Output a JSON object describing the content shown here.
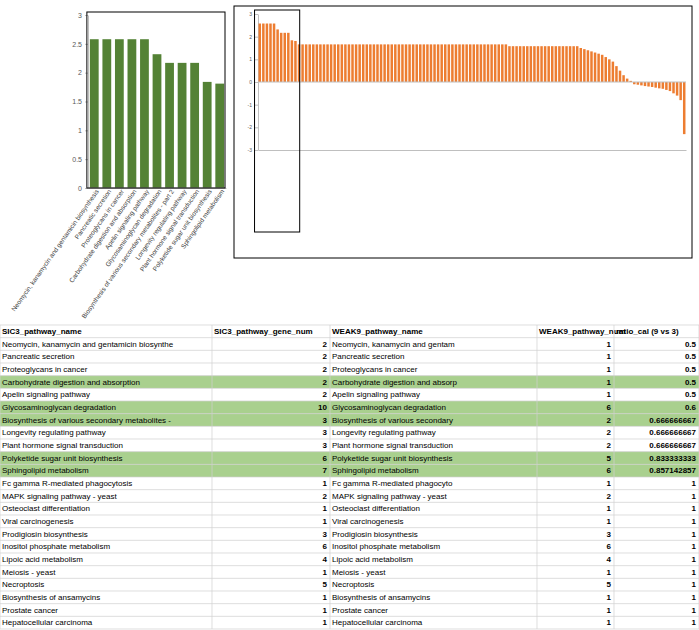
{
  "chart_data": [
    {
      "type": "bar",
      "categories": [
        "Neomycin, kanamycin and gentamicin biosynthesis",
        "Pancreatic secretion",
        "Proteoglycans in cancer",
        "Carbohydrate digestion and absorption",
        "Apelin signaling pathway",
        "Glycosaminoglycan degradation",
        "Biosynthesis of various secondary metabolites - part 2",
        "Longevity regulating pathway",
        "Plant hormone signal transduction",
        "Polyketide sugar unit biosynthesis",
        "Sphingolipid metabolism"
      ],
      "values": [
        2.58,
        2.58,
        2.58,
        2.58,
        2.58,
        2.32,
        2.17,
        2.17,
        2.17,
        1.84,
        1.81
      ],
      "color": "#548235",
      "ylim": [
        0,
        3
      ],
      "yticks": [
        0,
        0.5,
        1,
        1.5,
        2,
        2.5,
        3
      ]
    },
    {
      "type": "bar",
      "categories": [
        null,
        null,
        null,
        null,
        null,
        null,
        null,
        null,
        null,
        null,
        null,
        null,
        null,
        null,
        null,
        null,
        null,
        null,
        null,
        null,
        null,
        null,
        null,
        null,
        null,
        null,
        null,
        null,
        null,
        null,
        null,
        null,
        null,
        null,
        null,
        null,
        null,
        null,
        null,
        null,
        null,
        null,
        null,
        null,
        null,
        null,
        null,
        null,
        null,
        null,
        null,
        null,
        null,
        null,
        null,
        null,
        null,
        null,
        null,
        null,
        null,
        null,
        null,
        null,
        null,
        null,
        null,
        null,
        null,
        null,
        null,
        null,
        null,
        null,
        null,
        null,
        null,
        null,
        null,
        null,
        null,
        null,
        null,
        null,
        null,
        null,
        null,
        null,
        null,
        null,
        null,
        null,
        null,
        null,
        null,
        null,
        null,
        null,
        null,
        null,
        null,
        null,
        null,
        null,
        null,
        null,
        null,
        null,
        null,
        null,
        null,
        null,
        null,
        null,
        null,
        null,
        null,
        null,
        null,
        null
      ],
      "values": [
        2.58,
        2.58,
        2.58,
        2.58,
        2.58,
        2.32,
        2.17,
        2.17,
        2.17,
        1.84,
        1.81,
        1.66,
        1.66,
        1.66,
        1.66,
        1.66,
        1.66,
        1.66,
        1.66,
        1.66,
        1.66,
        1.66,
        1.66,
        1.66,
        1.66,
        1.66,
        1.66,
        1.66,
        1.66,
        1.66,
        1.66,
        1.66,
        1.66,
        1.66,
        1.66,
        1.66,
        1.66,
        1.66,
        1.66,
        1.66,
        1.66,
        1.66,
        1.66,
        1.66,
        1.66,
        1.66,
        1.66,
        1.66,
        1.66,
        1.66,
        1.66,
        1.66,
        1.66,
        1.66,
        1.66,
        1.66,
        1.66,
        1.66,
        1.66,
        1.66,
        1.66,
        1.66,
        1.66,
        1.66,
        1.66,
        1.66,
        1.66,
        1.66,
        1.66,
        1.66,
        1.58,
        1.58,
        1.58,
        1.58,
        1.58,
        1.58,
        1.58,
        1.58,
        1.58,
        1.58,
        1.58,
        1.58,
        1.58,
        1.58,
        1.58,
        1.58,
        1.58,
        1.58,
        1.58,
        1.58,
        1.5,
        1.45,
        1.4,
        1.35,
        1.3,
        1.25,
        1.2,
        1.1,
        1.0,
        0.9,
        0.7,
        0.5,
        0.3,
        0.15,
        0.05,
        -0.1,
        -0.12,
        -0.15,
        -0.18,
        -0.2,
        -0.22,
        -0.25,
        -0.28,
        -0.3,
        -0.35,
        -0.4,
        -0.5,
        -0.6,
        -0.8,
        -2.3
      ],
      "color": "#ed7d31",
      "ylim": [
        -3,
        3
      ],
      "yticks": [
        -3,
        -2,
        -1,
        0,
        1,
        2,
        3
      ]
    }
  ],
  "table": {
    "columns": [
      "SIC3_pathway_name",
      "SIC3_pathway_gene_num",
      "WEAK9_pathway_name",
      "WEAK9_pathway_num",
      "ratio_cal (9 vs 3)"
    ],
    "rows": [
      [
        "Neomycin, kanamycin and gentamicin biosynthe",
        2,
        "Neomycin, kanamycin and gentam",
        1,
        0.5
      ],
      [
        "Pancreatic secretion",
        2,
        "Pancreatic secretion",
        1,
        0.5
      ],
      [
        "Proteoglycans in cancer",
        2,
        "Proteoglycans in cancer",
        1,
        0.5
      ],
      [
        "Carbohydrate digestion and absorption",
        2,
        "Carbohydrate digestion and absorp",
        1,
        0.5
      ],
      [
        "Apelin signaling pathway",
        2,
        "Apelin signaling pathway",
        1,
        0.5
      ],
      [
        "Glycosaminoglycan degradation",
        10,
        "Glycosaminoglycan degradation",
        6,
        0.6
      ],
      [
        "Biosynthesis of various secondary metabolites -",
        3,
        "Biosynthesis of various secondary",
        2,
        0.666666667
      ],
      [
        "Longevity regulating pathway",
        3,
        "Longevity regulating pathway",
        2,
        0.666666667
      ],
      [
        "Plant hormone signal transduction",
        3,
        "Plant hormone signal transduction",
        2,
        0.666666667
      ],
      [
        "Polyketide sugar unit biosynthesis",
        6,
        "Polyketide sugar unit biosynthesis",
        5,
        0.833333333
      ],
      [
        "Sphingolipid metabolism",
        7,
        "Sphingolipid metabolism",
        6,
        0.857142857
      ],
      [
        "Fc gamma R-mediated phagocytosis",
        1,
        "Fc gamma R-mediated phagocyto",
        1,
        1
      ],
      [
        "MAPK signaling pathway - yeast",
        2,
        "MAPK signaling pathway - yeast",
        2,
        1
      ],
      [
        "Osteoclast differentiation",
        1,
        "Osteoclast differentiation",
        1,
        1
      ],
      [
        "Viral carcinogenesis",
        1,
        "Viral carcinogenesis",
        1,
        1
      ],
      [
        "Prodigiosin biosynthesis",
        3,
        "Prodigiosin biosynthesis",
        3,
        1
      ],
      [
        "Inositol phosphate metabolism",
        6,
        "Inositol phosphate metabolism",
        6,
        1
      ],
      [
        "Lipoic acid metabolism",
        4,
        "Lipoic acid metabolism",
        4,
        1
      ],
      [
        "Meiosis - yeast",
        1,
        "Meiosis - yeast",
        1,
        1
      ],
      [
        "Necroptosis",
        5,
        "Necroptosis",
        5,
        1
      ],
      [
        "Biosynthesis of ansamycins",
        1,
        "Biosynthesis of ansamycins",
        1,
        1
      ],
      [
        "Prostate cancer",
        1,
        "Prostate cancer",
        1,
        1
      ],
      [
        "Hepatocellular carcinoma",
        1,
        "Hepatocellular carcinoma",
        1,
        1
      ]
    ],
    "colors": [
      "#ffffff",
      "#ffffff",
      "#ffffff",
      "#a9d08e",
      "#ffffff",
      "#a9d08e",
      "#a9d08e",
      "#ffffff",
      "#ffffff",
      "#a9d08e",
      "#a9d08e",
      "#ffffff",
      "#ffffff",
      "#ffffff",
      "#ffffff",
      "#ffffff",
      "#ffffff",
      "#ffffff",
      "#ffffff",
      "#ffffff",
      "#ffffff",
      "#ffffff",
      "#ffffff"
    ]
  }
}
